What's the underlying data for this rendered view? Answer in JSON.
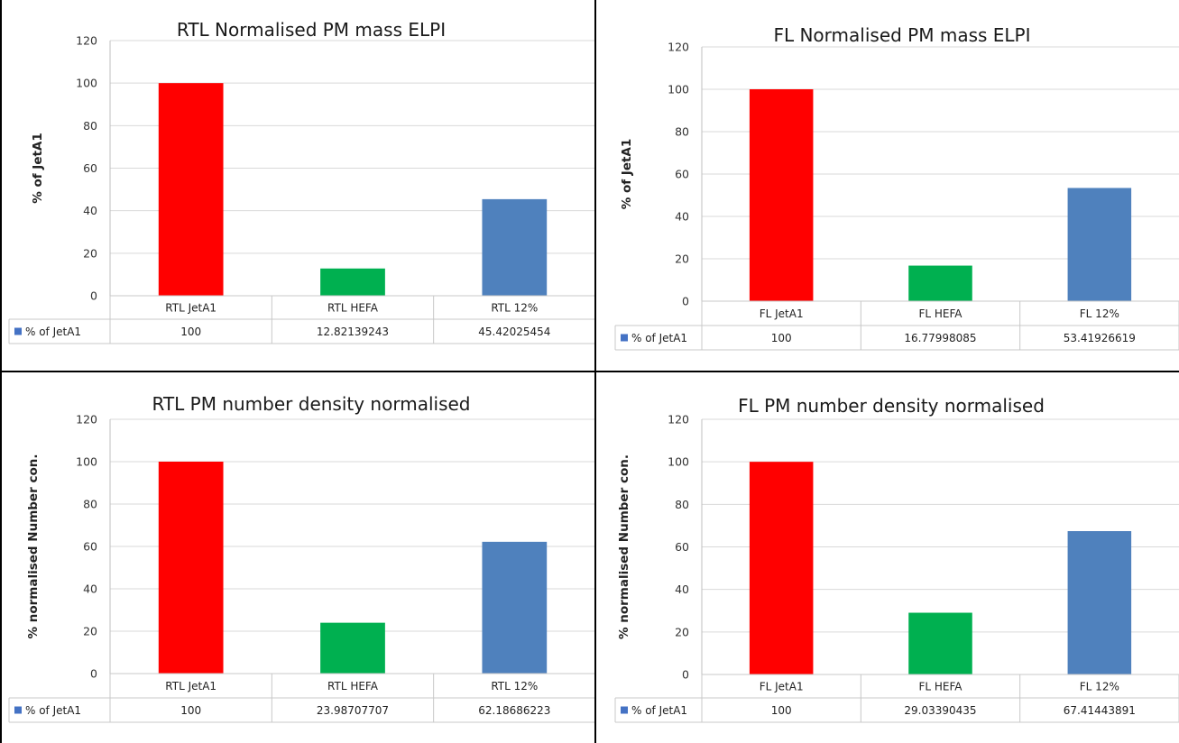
{
  "colors": {
    "frame": "#000000",
    "grid": "#d9d9d9",
    "table_line": "#c8c8c8"
  },
  "chart_data": [
    {
      "type": "bar",
      "title": "RTL Normalised PM mass ELPI",
      "ylabel": "% of JetA1",
      "xlabel": "",
      "ylim": [
        0,
        120
      ],
      "yticks": [
        0,
        20,
        40,
        60,
        80,
        100,
        120
      ],
      "categories": [
        "RTL JetA1",
        "RTL HEFA",
        "RTL 12%"
      ],
      "values": [
        100,
        12.82139243,
        45.42025454
      ],
      "value_labels": [
        "100",
        "12.82139243",
        "45.42025454"
      ],
      "bar_colors": [
        "#ff0000",
        "#00b050",
        "#4f81bd"
      ],
      "legend_color": "#4472c4",
      "grid": true,
      "data_table": {
        "series_name": "% of JetA1"
      }
    },
    {
      "type": "bar",
      "title": "FL Normalised PM mass ELPI",
      "ylabel": "% of JetA1",
      "xlabel": "",
      "ylim": [
        0,
        120
      ],
      "yticks": [
        0,
        20,
        40,
        60,
        80,
        100,
        120
      ],
      "categories": [
        "FL JetA1",
        "FL HEFA",
        "FL 12%"
      ],
      "values": [
        100,
        16.77998085,
        53.41926619
      ],
      "value_labels": [
        "100",
        "16.77998085",
        "53.41926619"
      ],
      "bar_colors": [
        "#ff0000",
        "#00b050",
        "#4f81bd"
      ],
      "legend_color": "#4472c4",
      "grid": true,
      "data_table": {
        "series_name": "% of JetA1"
      }
    },
    {
      "type": "bar",
      "title": "RTL PM number density normalised",
      "ylabel": "% normalised Number con.",
      "xlabel": "",
      "ylim": [
        0,
        120
      ],
      "yticks": [
        0,
        20,
        40,
        60,
        80,
        100,
        120
      ],
      "categories": [
        "RTL JetA1",
        "RTL HEFA",
        "RTL 12%"
      ],
      "values": [
        100,
        23.98707707,
        62.18686223
      ],
      "value_labels": [
        "100",
        "23.98707707",
        "62.18686223"
      ],
      "bar_colors": [
        "#ff0000",
        "#00b050",
        "#4f81bd"
      ],
      "legend_color": "#4472c4",
      "grid": true,
      "data_table": {
        "series_name": "% of JetA1"
      }
    },
    {
      "type": "bar",
      "title": "FL  PM number density normalised",
      "ylabel": "% normalised Number con.",
      "xlabel": "",
      "ylim": [
        0,
        120
      ],
      "yticks": [
        0,
        20,
        40,
        60,
        80,
        100,
        120
      ],
      "categories": [
        "FL JetA1",
        "FL HEFA",
        "FL 12%"
      ],
      "values": [
        100,
        29.03390435,
        67.41443891
      ],
      "value_labels": [
        "100",
        "29.03390435",
        "67.41443891"
      ],
      "bar_colors": [
        "#ff0000",
        "#00b050",
        "#4f81bd"
      ],
      "legend_color": "#4472c4",
      "grid": true,
      "data_table": {
        "series_name": "% of JetA1"
      }
    }
  ]
}
